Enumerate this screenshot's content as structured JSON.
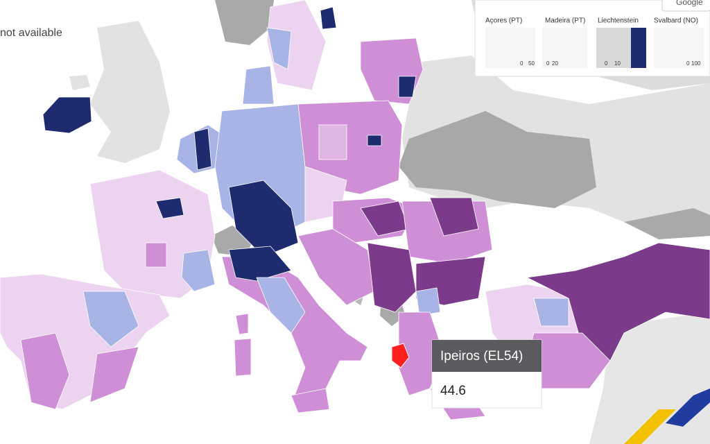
{
  "legend": {
    "not_available": "not available"
  },
  "insets": [
    {
      "label": "Açores (PT)",
      "scale_start": 0,
      "scale_end": 50
    },
    {
      "label": "Madeira (PT)",
      "scale_start": 0,
      "scale_end": 20
    },
    {
      "label": "Liechtenstein",
      "scale_start": 0,
      "scale_end": 10
    },
    {
      "label": "Svalbard (NO)",
      "scale_start": 0,
      "scale_end": 100
    }
  ],
  "attribution": "Google",
  "tooltip": {
    "region": "Ipeiros (EL54)",
    "value": 44.6
  }
}
